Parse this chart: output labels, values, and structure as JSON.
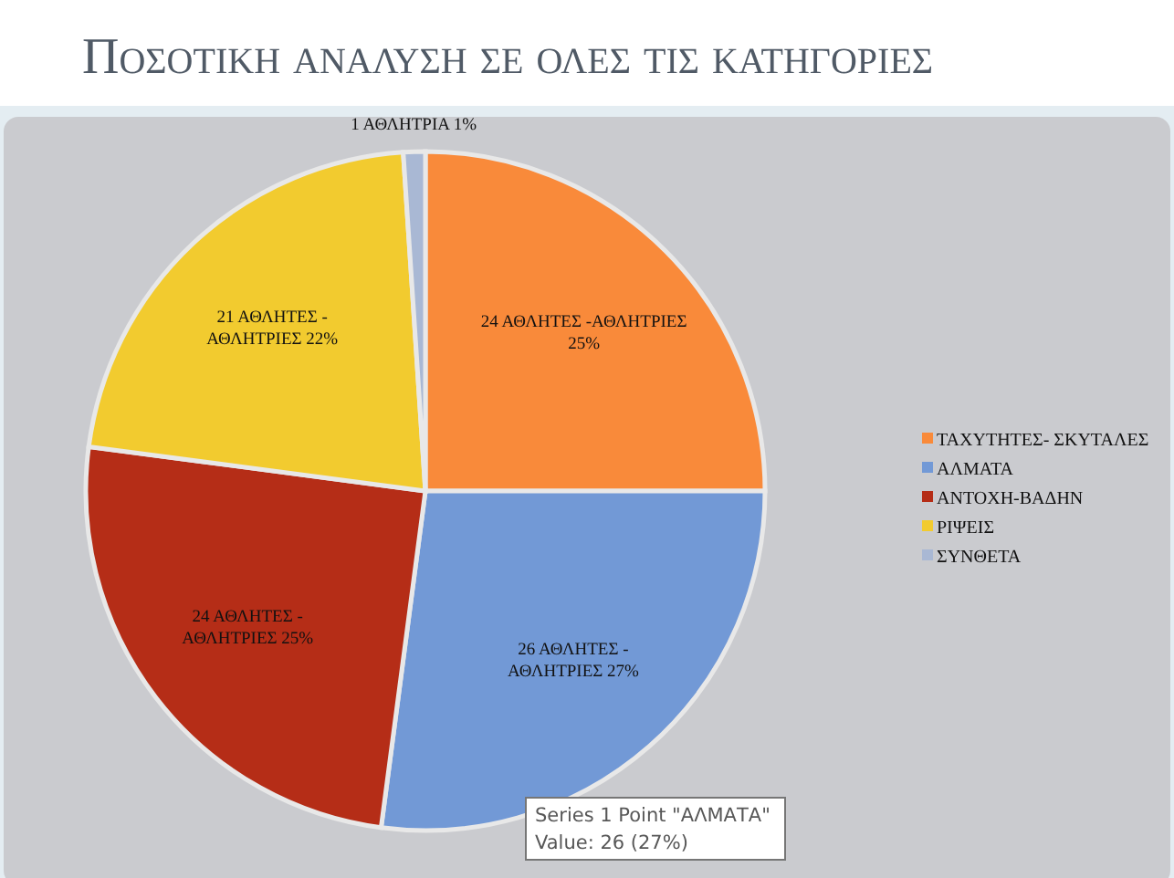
{
  "chart_data": {
    "type": "pie",
    "title": "Ποσοτικη αναλυση σε ολες τις κατηγοριες",
    "categories": [
      "ΤΑΧΥΤΗΤΕΣ- ΣΚΥΤΑΛΕΣ",
      "ΑΛΜΑΤΑ",
      "ΑΝΤΟΧΗ-ΒΑΔΗΝ",
      "ΡΙΨΕΙΣ",
      "ΣΥΝΘΕΤΑ"
    ],
    "values": [
      24,
      26,
      24,
      21,
      1
    ],
    "colors": [
      "#f98a3a",
      "#7299d6",
      "#b52d17",
      "#f2cb2f",
      "#a9b8d4"
    ],
    "value_labels": [
      "24 ΑΘΛΗΤΕΣ -ΑΘΛΗΤΡΙΕΣ\n25%",
      "26 ΑΘΛΗΤΕΣ -\nΑΘΛΗΤΡΙΕΣ 27%",
      "24 ΑΘΛΗΤΕΣ -\nΑΘΛΗΤΡΙΕΣ 25%",
      "21 ΑΘΛΗΤΕΣ -\nΑΘΛΗΤΡΙΕΣ 22%",
      "1 ΑΘΛΗΤΡΙΑ 1%"
    ],
    "legend": "right",
    "annotations": [
      "Series 1 Point \"ΑΛΜΑΤΑ\"\nValue: 26 (27%)"
    ]
  }
}
